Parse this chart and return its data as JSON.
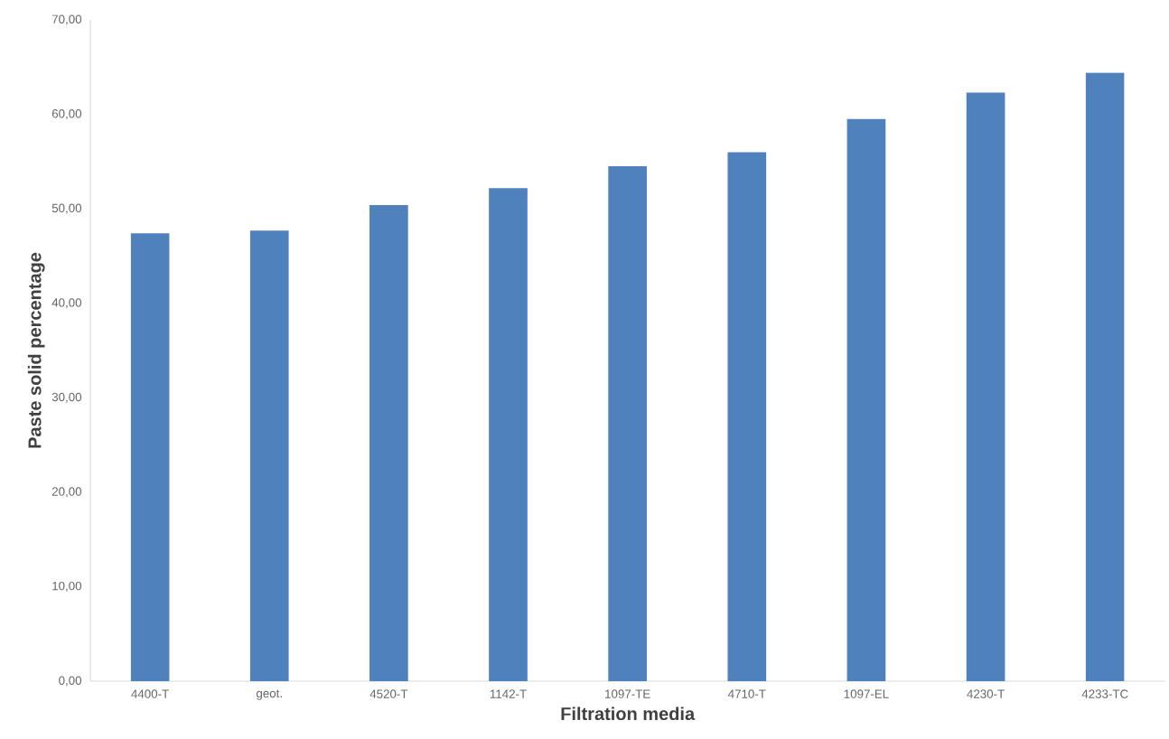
{
  "chart_data": {
    "type": "bar",
    "xlabel": "Filtration media",
    "ylabel": "Paste solid percentage",
    "categories": [
      "4400-T",
      "geot.",
      "4520-T",
      "1142-T",
      "1097-TE",
      "4710-T",
      "1097-EL",
      "4230-T",
      "4233-TC"
    ],
    "values": [
      47.4,
      47.7,
      50.4,
      52.2,
      54.5,
      56.0,
      59.5,
      62.3,
      64.4
    ],
    "color": "#4f81bd",
    "ylim": [
      0,
      70
    ],
    "yticks": [
      {
        "value": 0,
        "label": "0,00"
      },
      {
        "value": 10,
        "label": "10,00"
      },
      {
        "value": 20,
        "label": "20,00"
      },
      {
        "value": 30,
        "label": "30,00"
      },
      {
        "value": 40,
        "label": "40,00"
      },
      {
        "value": 50,
        "label": "50,00"
      },
      {
        "value": 60,
        "label": "60,00"
      },
      {
        "value": 70,
        "label": "70,00"
      }
    ],
    "grid": false
  }
}
